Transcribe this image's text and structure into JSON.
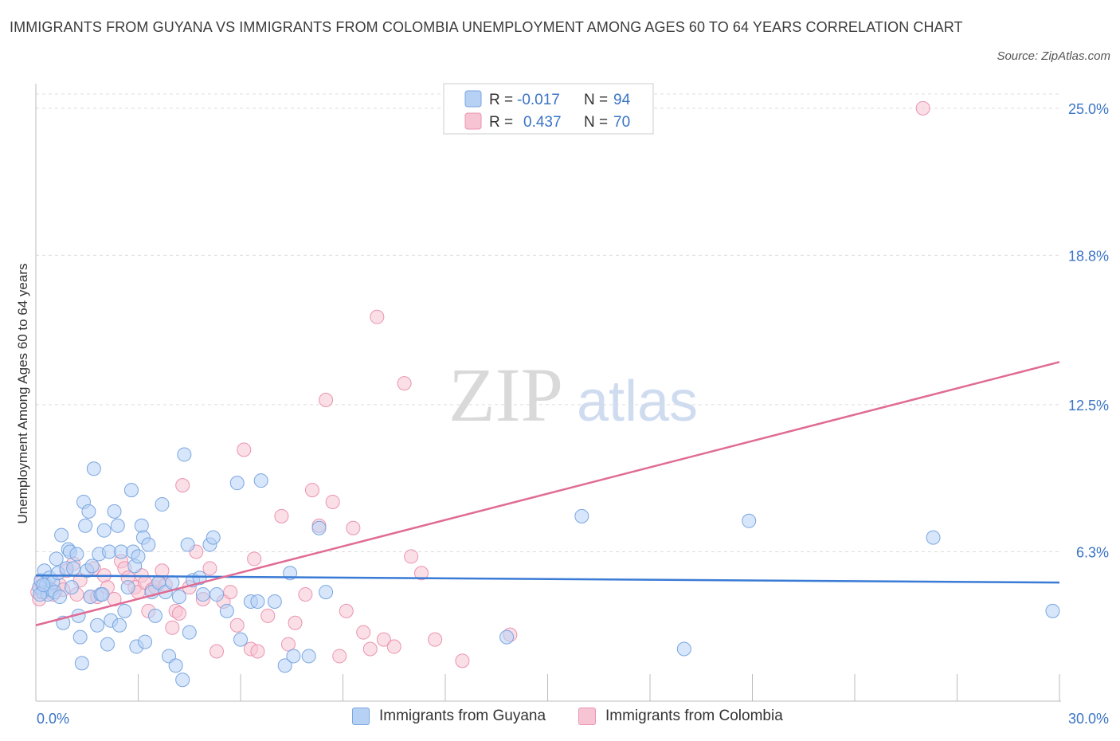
{
  "title": "IMMIGRANTS FROM GUYANA VS IMMIGRANTS FROM COLOMBIA UNEMPLOYMENT AMONG AGES 60 TO 64 YEARS CORRELATION CHART",
  "source": "Source: ZipAtlas.com",
  "watermark": {
    "zip": "ZIP",
    "atlas": "atlas"
  },
  "colors": {
    "guyana_fill": "#b7d1f5",
    "guyana_stroke": "#7aa6e0",
    "guyana_line": "#3a7bd5",
    "colombia_fill": "#f7c4d4",
    "colombia_stroke": "#ea94b1",
    "colombia_line": "#e06b94",
    "axis_label": "#3a74c6"
  },
  "legend_top": [
    {
      "r_label": "R =",
      "r_value": "-0.017",
      "n_label": "N =",
      "n_value": "94"
    },
    {
      "r_label": "R =",
      "r_value": "0.437",
      "n_label": "N =",
      "n_value": "70"
    }
  ],
  "chart_data": {
    "type": "scatter",
    "xlabel": "",
    "ylabel": "Unemployment Among Ages 60 to 64 years",
    "xlim": [
      0,
      30
    ],
    "ylim": [
      0,
      25.6
    ],
    "x_tick_labels": [
      "0.0%",
      "30.0%"
    ],
    "y_ticks": [
      6.3,
      12.5,
      18.8,
      25.0
    ],
    "y_tick_labels": [
      "6.3%",
      "12.5%",
      "18.8%",
      "25.0%"
    ],
    "grid": "horizontal dashed",
    "legend": "top-center and bottom",
    "series": [
      {
        "name": "Immigrants from Guyana",
        "trend": [
          [
            0,
            5.3
          ],
          [
            30,
            5.0
          ]
        ],
        "points": [
          [
            0.1,
            4.8
          ],
          [
            0.15,
            5.1
          ],
          [
            0.2,
            4.6
          ],
          [
            0.25,
            5.5
          ],
          [
            0.3,
            4.9
          ],
          [
            0.35,
            4.5
          ],
          [
            0.4,
            5.2
          ],
          [
            0.45,
            4.7
          ],
          [
            0.5,
            5.0
          ],
          [
            0.55,
            4.6
          ],
          [
            0.6,
            6.0
          ],
          [
            0.65,
            5.4
          ],
          [
            0.7,
            4.4
          ],
          [
            0.75,
            7.0
          ],
          [
            0.8,
            3.3
          ],
          [
            0.9,
            5.6
          ],
          [
            0.95,
            6.4
          ],
          [
            1.0,
            6.3
          ],
          [
            1.05,
            4.8
          ],
          [
            1.1,
            5.6
          ],
          [
            1.2,
            6.2
          ],
          [
            1.25,
            3.6
          ],
          [
            1.3,
            2.7
          ],
          [
            1.35,
            1.6
          ],
          [
            1.4,
            8.4
          ],
          [
            1.45,
            7.4
          ],
          [
            1.5,
            5.5
          ],
          [
            1.55,
            8.0
          ],
          [
            1.6,
            4.4
          ],
          [
            1.65,
            5.7
          ],
          [
            1.7,
            9.8
          ],
          [
            1.8,
            3.2
          ],
          [
            1.85,
            6.2
          ],
          [
            1.9,
            4.5
          ],
          [
            1.95,
            4.5
          ],
          [
            2.0,
            7.2
          ],
          [
            2.1,
            2.4
          ],
          [
            2.15,
            6.3
          ],
          [
            2.2,
            3.4
          ],
          [
            2.3,
            8.0
          ],
          [
            2.4,
            7.4
          ],
          [
            2.45,
            3.2
          ],
          [
            2.5,
            6.3
          ],
          [
            2.6,
            3.8
          ],
          [
            2.7,
            4.8
          ],
          [
            2.8,
            8.9
          ],
          [
            2.85,
            6.3
          ],
          [
            2.9,
            5.7
          ],
          [
            2.95,
            2.3
          ],
          [
            3.0,
            6.1
          ],
          [
            3.1,
            7.4
          ],
          [
            3.15,
            6.9
          ],
          [
            3.2,
            2.5
          ],
          [
            3.3,
            6.6
          ],
          [
            3.4,
            4.6
          ],
          [
            3.5,
            3.6
          ],
          [
            3.6,
            5.0
          ],
          [
            3.7,
            8.3
          ],
          [
            3.8,
            4.6
          ],
          [
            3.9,
            1.9
          ],
          [
            4.0,
            5.0
          ],
          [
            4.1,
            1.5
          ],
          [
            4.2,
            4.4
          ],
          [
            4.3,
            0.9
          ],
          [
            4.35,
            10.4
          ],
          [
            4.45,
            6.6
          ],
          [
            4.5,
            2.9
          ],
          [
            4.6,
            5.1
          ],
          [
            4.8,
            5.2
          ],
          [
            4.9,
            4.5
          ],
          [
            5.1,
            6.6
          ],
          [
            5.2,
            6.9
          ],
          [
            5.3,
            4.5
          ],
          [
            5.6,
            3.8
          ],
          [
            5.9,
            9.2
          ],
          [
            6.0,
            2.6
          ],
          [
            6.3,
            4.2
          ],
          [
            6.5,
            4.2
          ],
          [
            6.6,
            9.3
          ],
          [
            7.0,
            4.2
          ],
          [
            7.3,
            1.5
          ],
          [
            7.45,
            5.4
          ],
          [
            7.55,
            1.9
          ],
          [
            8.0,
            1.9
          ],
          [
            8.3,
            7.3
          ],
          [
            8.5,
            4.6
          ],
          [
            13.8,
            2.7
          ],
          [
            16.0,
            7.8
          ],
          [
            19.0,
            2.2
          ],
          [
            20.9,
            7.6
          ],
          [
            26.3,
            6.9
          ],
          [
            29.8,
            3.8
          ],
          [
            0.12,
            4.5
          ],
          [
            0.22,
            4.9
          ]
        ]
      },
      {
        "name": "Immigrants from Colombia",
        "trend": [
          [
            0,
            3.2
          ],
          [
            30,
            14.3
          ]
        ],
        "points": [
          [
            0.05,
            4.6
          ],
          [
            0.1,
            4.3
          ],
          [
            0.15,
            5.0
          ],
          [
            0.3,
            4.8
          ],
          [
            0.5,
            4.5
          ],
          [
            0.7,
            4.9
          ],
          [
            0.9,
            5.5
          ],
          [
            1.1,
            5.8
          ],
          [
            1.2,
            4.5
          ],
          [
            1.3,
            5.1
          ],
          [
            1.6,
            4.4
          ],
          [
            1.7,
            5.6
          ],
          [
            1.8,
            4.4
          ],
          [
            2.0,
            5.3
          ],
          [
            2.1,
            4.8
          ],
          [
            2.3,
            4.3
          ],
          [
            2.5,
            5.9
          ],
          [
            2.6,
            5.6
          ],
          [
            2.7,
            5.2
          ],
          [
            2.9,
            4.8
          ],
          [
            3.0,
            4.6
          ],
          [
            3.1,
            5.3
          ],
          [
            3.2,
            5.0
          ],
          [
            3.3,
            3.8
          ],
          [
            3.4,
            4.7
          ],
          [
            3.5,
            4.8
          ],
          [
            3.6,
            5.0
          ],
          [
            3.7,
            5.5
          ],
          [
            3.8,
            4.9
          ],
          [
            4.0,
            3.1
          ],
          [
            4.1,
            3.8
          ],
          [
            4.2,
            3.7
          ],
          [
            4.3,
            9.1
          ],
          [
            4.5,
            4.8
          ],
          [
            4.7,
            6.3
          ],
          [
            4.9,
            4.3
          ],
          [
            5.1,
            5.6
          ],
          [
            5.3,
            2.1
          ],
          [
            5.5,
            4.2
          ],
          [
            5.7,
            4.6
          ],
          [
            5.9,
            3.2
          ],
          [
            6.1,
            10.6
          ],
          [
            6.3,
            2.2
          ],
          [
            6.4,
            6.0
          ],
          [
            6.5,
            2.1
          ],
          [
            6.8,
            3.6
          ],
          [
            7.2,
            7.8
          ],
          [
            7.4,
            2.4
          ],
          [
            7.6,
            3.3
          ],
          [
            7.9,
            4.5
          ],
          [
            8.1,
            8.9
          ],
          [
            8.3,
            7.4
          ],
          [
            8.5,
            12.7
          ],
          [
            8.7,
            8.4
          ],
          [
            8.9,
            1.9
          ],
          [
            9.1,
            3.8
          ],
          [
            9.3,
            7.3
          ],
          [
            9.6,
            2.9
          ],
          [
            9.8,
            2.2
          ],
          [
            10.0,
            16.2
          ],
          [
            10.2,
            2.6
          ],
          [
            10.5,
            2.3
          ],
          [
            10.8,
            13.4
          ],
          [
            11.0,
            6.1
          ],
          [
            11.3,
            5.4
          ],
          [
            11.7,
            2.6
          ],
          [
            12.5,
            1.7
          ],
          [
            13.9,
            2.8
          ],
          [
            26.0,
            25.0
          ],
          [
            0.8,
            4.7
          ]
        ]
      }
    ]
  }
}
